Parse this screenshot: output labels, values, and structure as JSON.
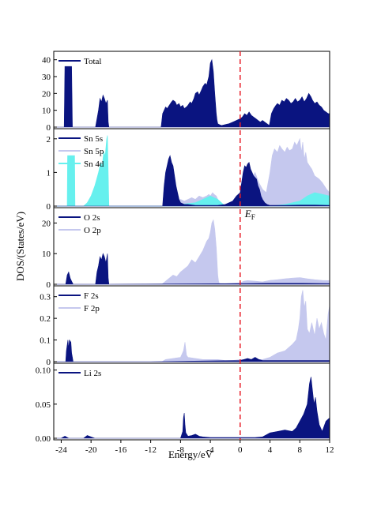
{
  "chart_data": {
    "type": "area",
    "xlabel": "Energy/eV",
    "ylabel": "DOS/(States/eV)",
    "xlim": [
      -25,
      12
    ],
    "xticks": [
      -24,
      -20,
      -16,
      -12,
      -8,
      -4,
      0,
      4,
      8,
      12
    ],
    "fermi_level": {
      "x": 0,
      "label": "E",
      "subscript": "F",
      "color": "#e8202a"
    },
    "colors": {
      "dark": "#0a1480",
      "light": "#c5c8ee",
      "cyan": "#66f0ee"
    },
    "panels": [
      {
        "ylim": [
          0,
          45
        ],
        "yticks": [
          0,
          10,
          20,
          30,
          40
        ],
        "legend": [
          {
            "name": "Total",
            "color": "#0a1480"
          }
        ],
        "series": [
          {
            "name": "Total",
            "color": "#0a1480",
            "x": [
              -25,
              -23.6,
              -23.5,
              -23.4,
              -23.2,
              -23.0,
              -22.8,
              -22.6,
              -22.5,
              -22.4,
              -19.4,
              -19.2,
              -19.0,
              -18.8,
              -18.6,
              -18.4,
              -18.2,
              -18.0,
              -17.8,
              -17.7,
              -17.6,
              -10.6,
              -10.4,
              -10.2,
              -10.0,
              -9.8,
              -9.5,
              -9.2,
              -9.0,
              -8.7,
              -8.5,
              -8.2,
              -8.0,
              -7.7,
              -7.5,
              -7.2,
              -7.0,
              -6.7,
              -6.5,
              -6.2,
              -6.0,
              -5.7,
              -5.5,
              -5.2,
              -5.0,
              -4.7,
              -4.5,
              -4.2,
              -4.0,
              -3.8,
              -3.6,
              -3.4,
              -3.2,
              -3.1,
              -3.0,
              -2.8,
              -2.5,
              -2.0,
              -1.5,
              -1.0,
              -0.5,
              0,
              0.3,
              0.6,
              0.9,
              1.2,
              1.5,
              1.8,
              2.1,
              2.4,
              2.7,
              3.0,
              3.3,
              3.6,
              3.9,
              4.0,
              4.2,
              4.5,
              4.8,
              5.0,
              5.3,
              5.6,
              5.9,
              6.2,
              6.5,
              6.8,
              7.1,
              7.4,
              7.7,
              8.0,
              8.3,
              8.6,
              8.9,
              9.2,
              9.5,
              9.7,
              10.0,
              10.3,
              10.6,
              10.9,
              11.2,
              11.5,
              11.8,
              12.0
            ],
            "values": [
              0,
              0,
              36,
              36,
              36,
              36,
              36,
              36,
              0,
              0,
              0,
              5,
              10,
              17,
              15,
              19,
              17,
              14,
              16,
              3,
              0,
              0,
              8,
              10,
              12,
              11,
              13,
              15,
              16,
              15,
              13,
              14,
              12,
              13,
              11,
              12,
              13,
              15,
              14,
              17,
              20,
              21,
              19,
              22,
              24,
              26,
              25,
              30,
              38,
              40,
              33,
              20,
              8,
              4,
              2,
              1.5,
              1,
              1.5,
              2,
              3,
              4,
              5,
              6,
              8,
              7,
              9,
              7,
              6,
              5,
              4,
              3,
              4,
              3,
              2,
              1,
              3,
              8,
              11,
              13,
              14,
              13,
              16,
              15,
              17,
              16,
              14,
              15,
              17,
              15,
              16,
              18,
              15,
              17,
              20,
              18,
              16,
              14,
              15,
              13,
              12,
              10,
              9,
              8,
              8
            ]
          }
        ]
      },
      {
        "ylim": [
          0,
          2.3
        ],
        "yticks": [
          0,
          1,
          2
        ],
        "legend": [
          {
            "name": "Sn 5s",
            "color": "#0a1480"
          },
          {
            "name": "Sn 5p",
            "color": "#c5c8ee"
          },
          {
            "name": "Sn 4d",
            "color": "#66f0ee"
          }
        ],
        "series": [
          {
            "name": "Sn 5p",
            "color": "#c5c8ee",
            "x": [
              -25,
              -10.0,
              -9.5,
              -9.0,
              -8.5,
              -8.0,
              -7.5,
              -7.0,
              -6.5,
              -6.0,
              -5.5,
              -5.0,
              -4.5,
              -4.2,
              -4.0,
              -3.7,
              -3.5,
              -3.2,
              -3.0,
              -2.8,
              -2.5,
              -2.0,
              -1.0,
              0,
              0.5,
              1.0,
              1.5,
              2.0,
              2.5,
              3.0,
              3.5,
              4.0,
              4.3,
              4.6,
              5.0,
              5.3,
              5.6,
              6.0,
              6.3,
              6.6,
              7.0,
              7.3,
              7.6,
              8.0,
              8.2,
              8.4,
              8.6,
              8.8,
              9.0,
              9.3,
              9.6,
              10.0,
              10.3,
              10.6,
              11.0,
              11.3,
              11.6,
              12.0
            ],
            "values": [
              0,
              0,
              0.05,
              0.1,
              0.15,
              0.2,
              0.15,
              0.2,
              0.25,
              0.2,
              0.3,
              0.25,
              0.3,
              0.35,
              0.3,
              0.4,
              0.35,
              0.3,
              0.2,
              0.1,
              0.05,
              0.02,
              0.05,
              0.1,
              0.3,
              0.5,
              0.8,
              1.0,
              0.7,
              0.5,
              0.4,
              1.0,
              1.5,
              1.7,
              1.6,
              1.8,
              1.7,
              1.6,
              1.75,
              1.65,
              1.7,
              1.9,
              1.8,
              2.0,
              1.6,
              1.9,
              1.4,
              1.6,
              1.3,
              1.2,
              1.1,
              0.9,
              0.85,
              0.8,
              0.7,
              0.6,
              0.5,
              0.4
            ]
          },
          {
            "name": "Sn 4d",
            "color": "#66f0ee",
            "x": [
              -25,
              -23.2,
              -23.15,
              -22.2,
              -22.15,
              -21.0,
              -20.5,
              -20.0,
              -19.5,
              -19.0,
              -18.7,
              -18.5,
              -18.3,
              -18.1,
              -17.9,
              -17.8,
              -17.7,
              -17.6,
              -10,
              -8,
              -6,
              -4,
              -3,
              -2,
              0,
              2,
              4,
              6,
              8,
              9,
              10,
              11,
              12
            ],
            "values": [
              0,
              0,
              1.5,
              1.5,
              0,
              0,
              0.1,
              0.3,
              0.6,
              1.0,
              1.3,
              1.2,
              1.6,
              1.5,
              2.0,
              2.1,
              1.0,
              0,
              0,
              0.05,
              0.1,
              0.3,
              0.2,
              0,
              0,
              0,
              0,
              0.05,
              0.15,
              0.3,
              0.4,
              0.35,
              0.3
            ]
          },
          {
            "name": "Sn 5s",
            "color": "#0a1480",
            "x": [
              -25,
              -10.4,
              -10.2,
              -10.0,
              -9.8,
              -9.6,
              -9.4,
              -9.2,
              -9.0,
              -8.8,
              -8.6,
              -8.4,
              -8.2,
              -8.0,
              -7.5,
              -7.0,
              -6.0,
              -5.0,
              -4.0,
              -3.0,
              -2.0,
              -1.0,
              -0.5,
              0,
              0.2,
              0.4,
              0.6,
              0.8,
              1.0,
              1.2,
              1.4,
              1.6,
              1.8,
              2.0,
              2.2,
              2.4,
              2.6,
              2.8,
              3.0,
              3.3,
              3.6,
              4.0,
              6.0,
              8.0,
              10.0,
              12.0
            ],
            "values": [
              0,
              0,
              0.6,
              1.0,
              1.2,
              1.4,
              1.5,
              1.3,
              1.2,
              0.9,
              0.6,
              0.4,
              0.2,
              0.1,
              0.05,
              0.05,
              0.02,
              0.02,
              0.02,
              0.02,
              0.05,
              0.15,
              0.3,
              0.4,
              0.7,
              1.0,
              1.2,
              1.15,
              1.25,
              1.3,
              1.1,
              1.0,
              0.9,
              0.85,
              0.8,
              0.6,
              0.5,
              0.3,
              0.2,
              0.1,
              0.05,
              0.02,
              0.02,
              0.03,
              0.03,
              0.02
            ]
          }
        ]
      },
      {
        "ylim": [
          0,
          25
        ],
        "yticks": [
          0,
          10,
          20
        ],
        "legend": [
          {
            "name": "O 2s",
            "color": "#0a1480"
          },
          {
            "name": "O 2p",
            "color": "#c5c8ee"
          }
        ],
        "series": [
          {
            "name": "O 2p",
            "color": "#c5c8ee",
            "x": [
              -25,
              -10.5,
              -10.0,
              -9.5,
              -9.0,
              -8.5,
              -8.0,
              -7.5,
              -7.0,
              -6.5,
              -6.0,
              -5.5,
              -5.0,
              -4.5,
              -4.2,
              -4.0,
              -3.8,
              -3.6,
              -3.4,
              -3.2,
              -3.0,
              -2.9,
              -2.8,
              -2.0,
              0,
              0.5,
              1.0,
              2.0,
              3.0,
              4.0,
              5.0,
              6.0,
              7.0,
              8.0,
              9.0,
              10.0,
              11.0,
              12.0
            ],
            "values": [
              0,
              0,
              1,
              2,
              3,
              2.5,
              4,
              5,
              6,
              8,
              7,
              9,
              11,
              14,
              15,
              17,
              20,
              21,
              18,
              12,
              3,
              1,
              0.3,
              0.2,
              0.5,
              1,
              1.2,
              1.0,
              0.8,
              1.3,
              1.5,
              1.8,
              2.0,
              2.2,
              1.8,
              1.5,
              1.3,
              1.2
            ]
          },
          {
            "name": "O 2s",
            "color": "#0a1480",
            "x": [
              -25,
              -23.4,
              -23.2,
              -23.0,
              -22.8,
              -22.6,
              -22.4,
              -19.4,
              -19.2,
              -19.0,
              -18.8,
              -18.6,
              -18.4,
              -18.2,
              -18.0,
              -17.8,
              -17.7,
              -17.6,
              -8,
              0,
              4,
              8,
              12
            ],
            "values": [
              0,
              0,
              3,
              4,
              2,
              1,
              0,
              0,
              4,
              6,
              9,
              8,
              10,
              9,
              7,
              10,
              2,
              0,
              0.1,
              0.2,
              0.3,
              0.3,
              0.2
            ]
          }
        ]
      },
      {
        "ylim": [
          0,
          0.35
        ],
        "yticks": [
          0.0,
          0.1,
          0.2,
          0.3
        ],
        "legend": [
          {
            "name": "F 2s",
            "color": "#0a1480"
          },
          {
            "name": "F 2p",
            "color": "#c5c8ee"
          }
        ],
        "series": [
          {
            "name": "F 2p",
            "color": "#c5c8ee",
            "x": [
              -25,
              -10.5,
              -10.0,
              -9.0,
              -8.0,
              -7.6,
              -7.4,
              -7.2,
              -7.0,
              -6.0,
              -5.0,
              -4.0,
              -3.0,
              -2.0,
              -1.0,
              0,
              1.0,
              2.0,
              3.0,
              4.0,
              5.0,
              6.0,
              7.0,
              7.5,
              7.8,
              8.0,
              8.2,
              8.4,
              8.6,
              8.8,
              9.0,
              9.3,
              9.6,
              10.0,
              10.3,
              10.6,
              10.9,
              11.2,
              11.5,
              11.8,
              12.0
            ],
            "values": [
              0,
              0,
              0.01,
              0.015,
              0.02,
              0.05,
              0.09,
              0.03,
              0.02,
              0.015,
              0.01,
              0.01,
              0.01,
              0.005,
              0.005,
              0.01,
              0.01,
              0.01,
              0.01,
              0.02,
              0.04,
              0.05,
              0.08,
              0.1,
              0.15,
              0.2,
              0.3,
              0.33,
              0.25,
              0.28,
              0.15,
              0.13,
              0.18,
              0.12,
              0.2,
              0.15,
              0.18,
              0.13,
              0.1,
              0.22,
              0.26
            ]
          },
          {
            "name": "F 2s",
            "color": "#0a1480",
            "x": [
              -25,
              -23.4,
              -23.3,
              -23.1,
              -23.0,
              -22.9,
              -22.7,
              -22.6,
              -22.5,
              -22.4,
              -12,
              0,
              0.5,
              1.0,
              1.5,
              2.0,
              2.5,
              3.0,
              4.0,
              12
            ],
            "values": [
              0,
              0,
              0.05,
              0.1,
              0.06,
              0.1,
              0.09,
              0.04,
              0.02,
              0,
              0,
              0.005,
              0.01,
              0.015,
              0.01,
              0.02,
              0.01,
              0.005,
              0.005,
              0.005
            ]
          }
        ]
      },
      {
        "ylim": [
          0,
          0.11
        ],
        "yticks": [
          0.0,
          0.05,
          0.1
        ],
        "ytick_labels": [
          "0.00",
          "0.05",
          "0.10"
        ],
        "legend": [
          {
            "name": "Li 2s",
            "color": "#0a1480"
          }
        ],
        "series": [
          {
            "name": "Li 2s",
            "color": "#0a1480",
            "x": [
              -25,
              -24.0,
              -23.5,
              -23.0,
              -21.0,
              -20.5,
              -20.0,
              -19.5,
              -8.0,
              -7.7,
              -7.6,
              -7.5,
              -7.4,
              -7.3,
              -7.0,
              -6.5,
              -6.0,
              -5.5,
              -5.0,
              -4.0,
              0,
              2.0,
              3.0,
              3.5,
              4.0,
              5.0,
              6.0,
              7.0,
              7.5,
              8.0,
              8.5,
              9.0,
              9.3,
              9.5,
              9.7,
              9.9,
              10.1,
              10.3,
              10.6,
              11.0,
              11.5,
              12.0
            ],
            "values": [
              0,
              0,
              0.003,
              0,
              0,
              0.004,
              0.002,
              0,
              0,
              0.01,
              0.03,
              0.037,
              0.02,
              0.008,
              0.003,
              0.004,
              0.006,
              0.003,
              0.002,
              0.001,
              0.001,
              0.001,
              0.002,
              0.005,
              0.008,
              0.01,
              0.012,
              0.01,
              0.015,
              0.025,
              0.035,
              0.05,
              0.08,
              0.09,
              0.07,
              0.05,
              0.06,
              0.04,
              0.02,
              0.01,
              0.025,
              0.03
            ]
          }
        ]
      }
    ]
  }
}
